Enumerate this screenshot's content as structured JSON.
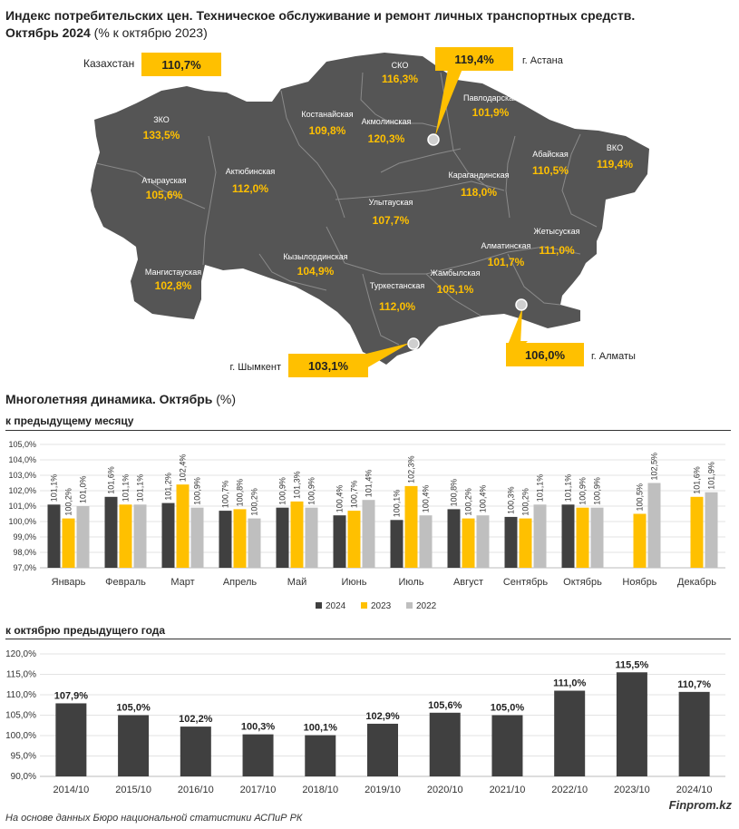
{
  "title": {
    "line1": "Индекс потребительских цен. Техническое обслуживание и ремонт личных транспортных средств.",
    "line2_bold": "Октябрь 2024",
    "line2_rest": " (% к октябрю 2023)"
  },
  "map": {
    "kz_label": "Казахстан",
    "kz_value": "110,7%",
    "regions": [
      {
        "name": "СКО",
        "value": "116,3%"
      },
      {
        "name": "ЗКО",
        "value": "133,5%"
      },
      {
        "name": "Костанайская",
        "value": "109,8%"
      },
      {
        "name": "Акмолинская",
        "value": "120,3%"
      },
      {
        "name": "Павлодарская",
        "value": "101,9%"
      },
      {
        "name": "Актюбинская",
        "value": "112,0%"
      },
      {
        "name": "Атырауская",
        "value": "105,6%"
      },
      {
        "name": "Карагандинская",
        "value": "118,0%"
      },
      {
        "name": "Абайская",
        "value": "110,5%"
      },
      {
        "name": "ВКО",
        "value": "119,4%"
      },
      {
        "name": "Улытауская",
        "value": "107,7%"
      },
      {
        "name": "Жетысуская",
        "value": "111,0%"
      },
      {
        "name": "Алматинская",
        "value": "101,7%"
      },
      {
        "name": "Мангистауская",
        "value": "102,8%"
      },
      {
        "name": "Кызылординская",
        "value": "104,9%"
      },
      {
        "name": "Жамбылская",
        "value": "105,1%"
      },
      {
        "name": "Туркестанская",
        "value": "112,0%"
      }
    ],
    "cities": [
      {
        "name": "г. Астана",
        "value": "119,4%"
      },
      {
        "name": "г. Шымкент",
        "value": "103,1%"
      },
      {
        "name": "г. Алматы",
        "value": "106,0%"
      }
    ],
    "colors": {
      "land": "#555555",
      "accent": "#FFC000",
      "text_on_land": "#FFFFFF"
    }
  },
  "section2_title_bold": "Многолетняя динамика. Октябрь",
  "section2_title_rest": " (%)",
  "chart1_subtitle": "к предыдущему месяцу",
  "chart2_subtitle": "к октябрю предыдущего года",
  "chart_data": [
    {
      "type": "bar",
      "categories": [
        "Январь",
        "Февраль",
        "Март",
        "Апрель",
        "Май",
        "Июнь",
        "Июль",
        "Август",
        "Сентябрь",
        "Октябрь",
        "Ноябрь",
        "Декабрь"
      ],
      "series": [
        {
          "name": "2024",
          "color": "#404040",
          "values": [
            101.1,
            101.6,
            101.2,
            100.7,
            100.9,
            100.4,
            100.1,
            100.8,
            100.3,
            101.1,
            null,
            null
          ],
          "labels": [
            "101,1%",
            "101,6%",
            "101,2%",
            "100,7%",
            "100,9%",
            "100,4%",
            "100,1%",
            "100,8%",
            "100,3%",
            "101,1%",
            "",
            ""
          ]
        },
        {
          "name": "2023",
          "color": "#FFC000",
          "values": [
            100.2,
            101.1,
            102.4,
            100.8,
            101.3,
            100.7,
            102.3,
            100.2,
            100.2,
            100.9,
            100.5,
            101.6
          ],
          "labels": [
            "100,2%",
            "101,1%",
            "102,4%",
            "100,8%",
            "101,3%",
            "100,7%",
            "102,3%",
            "100,2%",
            "100,2%",
            "100,9%",
            "100,5%",
            "101,6%"
          ]
        },
        {
          "name": "2022",
          "color": "#BFBFBF",
          "values": [
            101.0,
            101.1,
            100.9,
            100.2,
            100.9,
            101.4,
            100.4,
            100.4,
            101.1,
            100.9,
            102.5,
            101.9
          ],
          "labels": [
            "101,0%",
            "101,1%",
            "100,9%",
            "100,2%",
            "100,9%",
            "101,4%",
            "100,4%",
            "100,4%",
            "101,1%",
            "100,9%",
            "102,5%",
            "101,9%"
          ]
        }
      ],
      "ylim": [
        97,
        105
      ],
      "yticks": [
        "97,0%",
        "98,0%",
        "99,0%",
        "100,0%",
        "101,0%",
        "102,0%",
        "103,0%",
        "104,0%",
        "105,0%"
      ],
      "legend": "bottom-center"
    },
    {
      "type": "bar",
      "categories": [
        "2014/10",
        "2015/10",
        "2016/10",
        "2017/10",
        "2018/10",
        "2019/10",
        "2020/10",
        "2021/10",
        "2022/10",
        "2023/10",
        "2024/10"
      ],
      "values": [
        107.9,
        105.0,
        102.2,
        100.3,
        100.1,
        102.9,
        105.6,
        105.0,
        111.0,
        115.5,
        110.7
      ],
      "labels": [
        "107,9%",
        "105,0%",
        "102,2%",
        "100,3%",
        "100,1%",
        "102,9%",
        "105,6%",
        "105,0%",
        "111,0%",
        "115,5%",
        "110,7%"
      ],
      "color": "#404040",
      "ylim": [
        90,
        120
      ],
      "yticks": [
        "90,0%",
        "95,0%",
        "100,0%",
        "105,0%",
        "110,0%",
        "115,0%",
        "120,0%"
      ]
    }
  ],
  "footer": {
    "source": "На основе данных Бюро национальной статистики АСПиР РК",
    "brand": "Finprom.kz"
  }
}
